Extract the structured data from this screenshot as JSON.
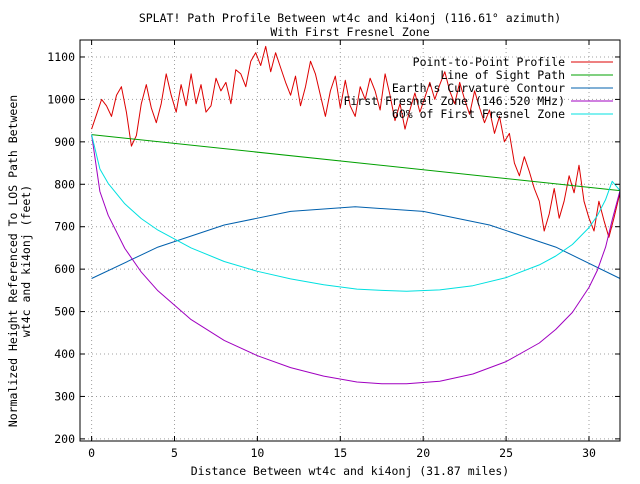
{
  "chart_data": {
    "type": "line",
    "title_line1": "SPLAT! Path Profile Between wt4c and ki4onj (116.61° azimuth)",
    "title_line2": "With First Fresnel Zone",
    "xlabel": "Distance Between wt4c and ki4onj (31.87 miles)",
    "ylabel_line1": "Normalized Height Referenced To LOS Path Between",
    "ylabel_line2": "wt4c and ki4onj (feet)",
    "xlim": [
      -0.7,
      31.87
    ],
    "ylim": [
      195,
      1140
    ],
    "xticks": [
      0,
      5,
      10,
      15,
      20,
      25,
      30
    ],
    "yticks": [
      200,
      300,
      400,
      500,
      600,
      700,
      800,
      900,
      1000,
      1100
    ],
    "grid": true,
    "legend_position": "top-right",
    "series": [
      {
        "name": "Point-to-Point Profile",
        "color": "#dd0000",
        "x": [
          0,
          0.3,
          0.6,
          0.9,
          1.2,
          1.5,
          1.8,
          2.1,
          2.4,
          2.7,
          3.0,
          3.3,
          3.6,
          3.9,
          4.2,
          4.5,
          4.8,
          5.1,
          5.4,
          5.7,
          6.0,
          6.3,
          6.6,
          6.9,
          7.2,
          7.5,
          7.8,
          8.1,
          8.4,
          8.7,
          9.0,
          9.3,
          9.6,
          9.9,
          10.2,
          10.5,
          10.8,
          11.1,
          11.4,
          11.7,
          12.0,
          12.3,
          12.6,
          12.9,
          13.2,
          13.5,
          13.8,
          14.1,
          14.4,
          14.7,
          15.0,
          15.3,
          15.6,
          15.9,
          16.2,
          16.5,
          16.8,
          17.1,
          17.4,
          17.7,
          18.0,
          18.3,
          18.6,
          18.9,
          19.2,
          19.5,
          19.8,
          20.1,
          20.4,
          20.7,
          21.0,
          21.3,
          21.6,
          21.9,
          22.2,
          22.5,
          22.8,
          23.1,
          23.4,
          23.7,
          24.0,
          24.3,
          24.6,
          24.9,
          25.2,
          25.5,
          25.8,
          26.1,
          26.4,
          26.7,
          27.0,
          27.3,
          27.6,
          27.9,
          28.2,
          28.5,
          28.8,
          29.1,
          29.4,
          29.7,
          30.0,
          30.3,
          30.6,
          30.9,
          31.2,
          31.5,
          31.87
        ],
        "y": [
          930,
          965,
          1000,
          985,
          960,
          1010,
          1030,
          970,
          890,
          915,
          990,
          1035,
          980,
          945,
          990,
          1060,
          1010,
          970,
          1035,
          985,
          1060,
          990,
          1035,
          970,
          985,
          1050,
          1020,
          1040,
          990,
          1070,
          1060,
          1030,
          1090,
          1110,
          1080,
          1125,
          1065,
          1110,
          1075,
          1040,
          1010,
          1055,
          985,
          1030,
          1090,
          1060,
          1010,
          960,
          1020,
          1055,
          980,
          1045,
          985,
          960,
          1030,
          1000,
          1050,
          1020,
          975,
          1060,
          1010,
          950,
          990,
          930,
          975,
          1015,
          970,
          1005,
          1040,
          1000,
          1035,
          1065,
          1020,
          990,
          1040,
          1000,
          965,
          1020,
          980,
          945,
          975,
          920,
          960,
          900,
          920,
          850,
          820,
          865,
          830,
          790,
          760,
          690,
          730,
          790,
          720,
          760,
          820,
          780,
          845,
          760,
          720,
          690,
          760,
          715,
          675,
          720,
          780
        ]
      },
      {
        "name": "Line of Sight Path",
        "color": "#00a000",
        "x": [
          0,
          31.87
        ],
        "y": [
          917,
          785
        ]
      },
      {
        "name": "Earth's Curvature Contour",
        "color": "#0060ad",
        "x": [
          0,
          4,
          8,
          12,
          15.9,
          20,
          24,
          28,
          31.87
        ],
        "y": [
          578,
          652,
          704,
          736,
          747,
          736,
          704,
          652,
          578
        ]
      },
      {
        "name": "First Fresnel Zone (146.520 MHz)",
        "color": "#a000c0",
        "x": [
          0,
          0.5,
          1,
          2,
          3,
          4,
          6,
          8,
          10,
          12,
          14,
          16,
          17.5,
          19,
          21,
          23,
          25,
          27,
          28,
          29,
          30,
          30.5,
          31,
          31.4,
          31.87
        ],
        "y": [
          917,
          783,
          727,
          649,
          593,
          549,
          481,
          432,
          396,
          368,
          348,
          334,
          330,
          330,
          336,
          353,
          382,
          426,
          458,
          498,
          557,
          597,
          652,
          716,
          785
        ]
      },
      {
        "name": "60% of First Fresnel Zone",
        "color": "#00e0e0",
        "x": [
          0,
          0.5,
          1,
          2,
          3,
          4,
          6,
          8,
          10,
          12,
          14,
          16,
          17.5,
          19,
          21,
          23,
          25,
          27,
          28,
          29,
          30,
          30.5,
          31,
          31.4,
          31.87
        ],
        "y": [
          917,
          836,
          802,
          754,
          719,
          692,
          650,
          618,
          595,
          577,
          563,
          553,
          550,
          548,
          551,
          561,
          580,
          610,
          631,
          658,
          698,
          726,
          764,
          807,
          785
        ]
      }
    ]
  }
}
